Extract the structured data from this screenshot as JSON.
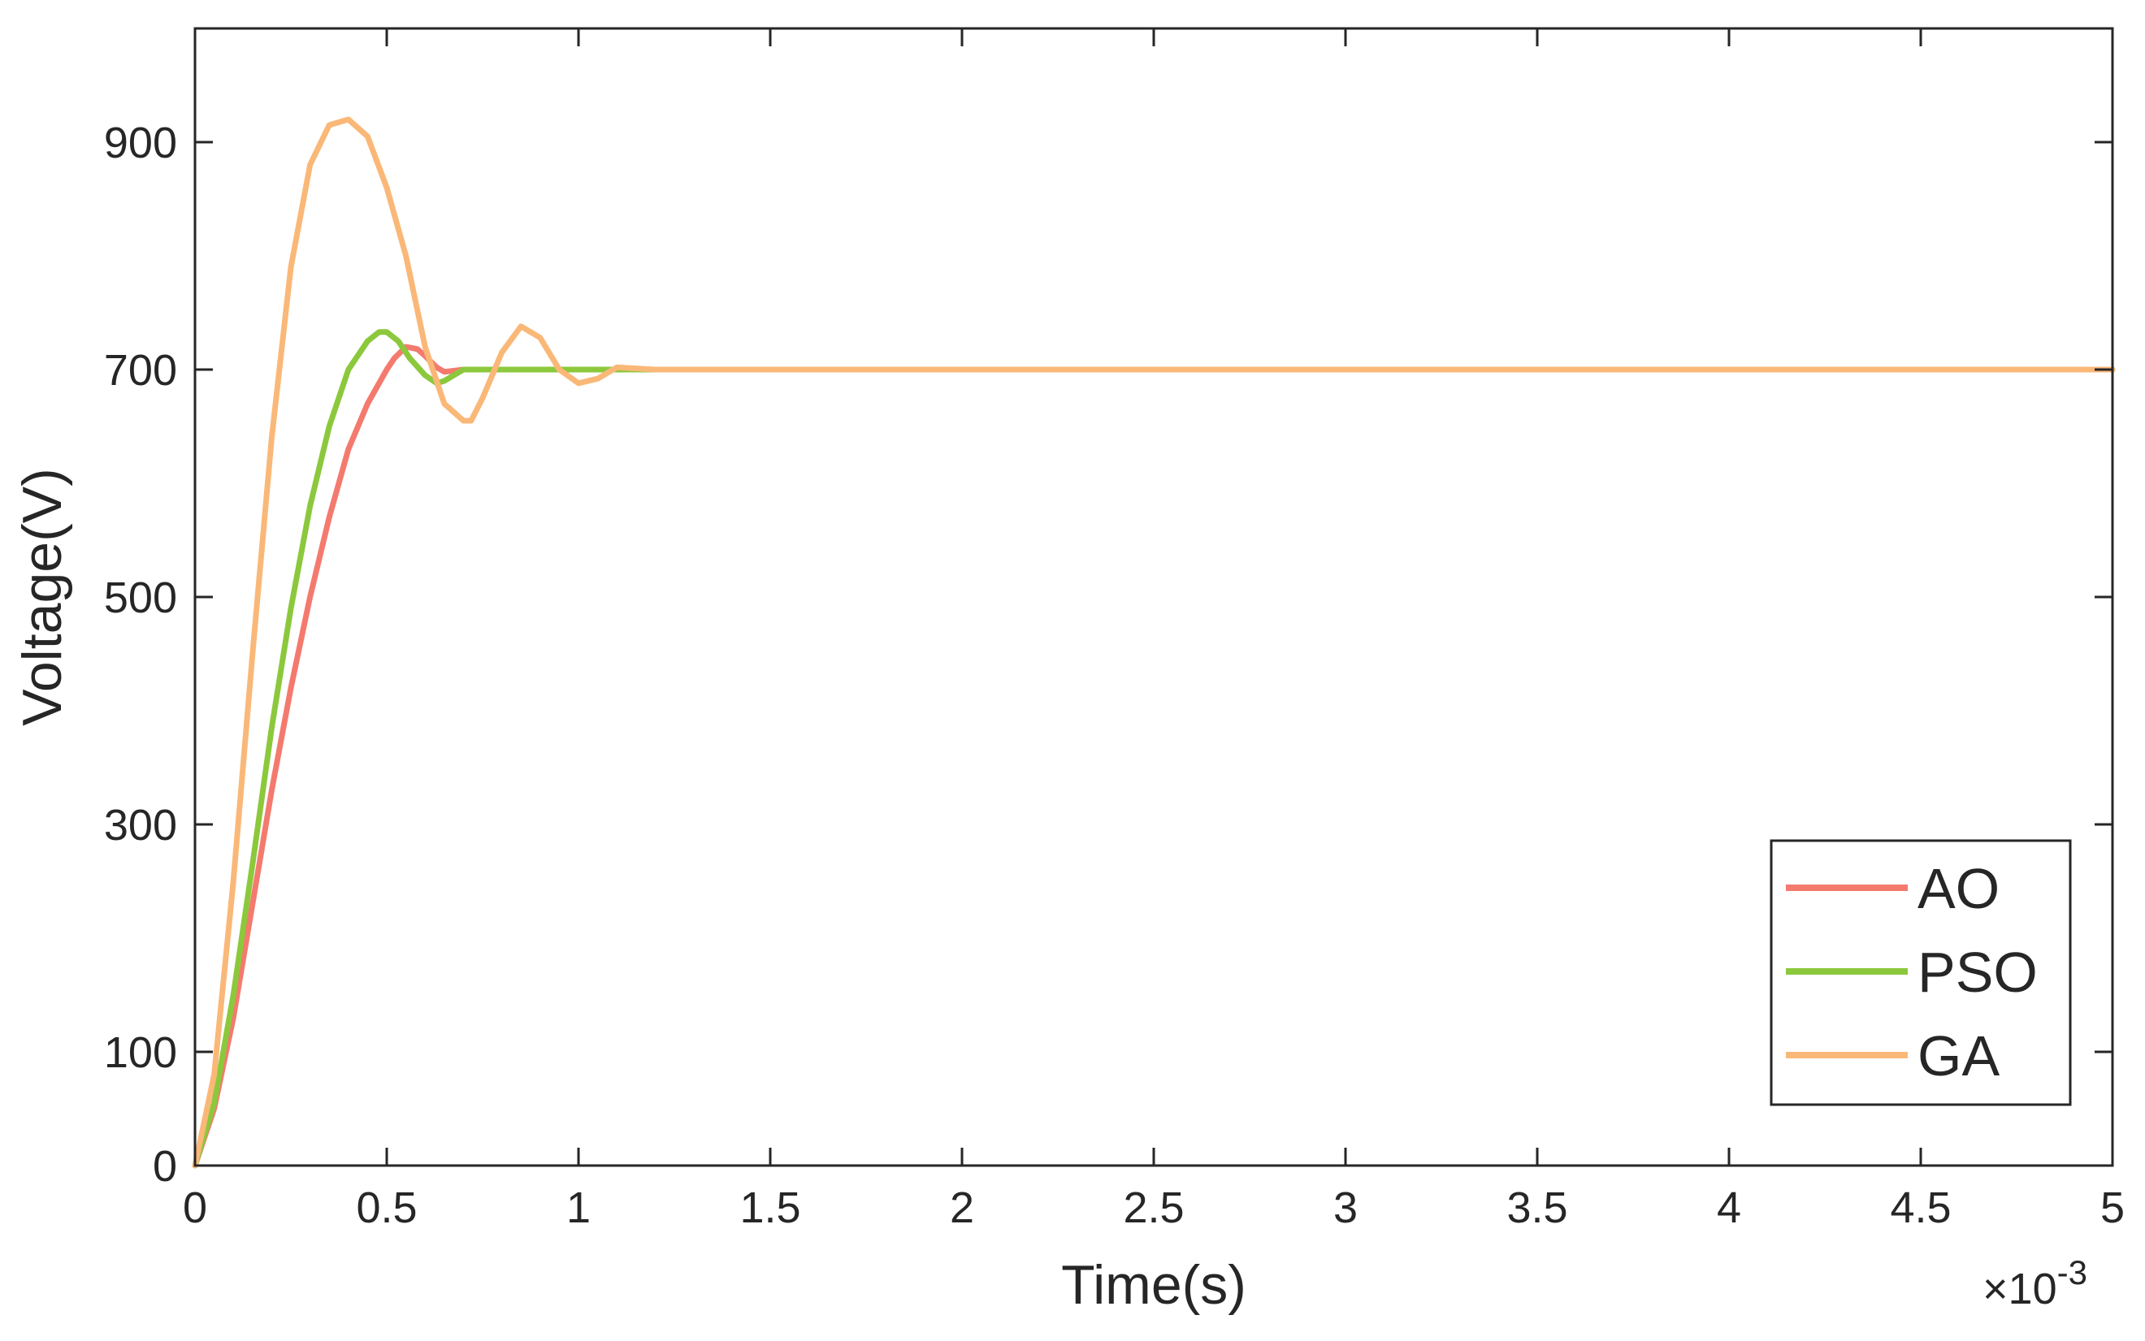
{
  "chart_data": {
    "type": "line",
    "title": "",
    "xlabel": "Time(s)",
    "ylabel": "Voltage(V)",
    "x_exponent_label": "×10",
    "x_exponent_power": "-3",
    "x_scale": 0.001,
    "xlim": [
      0,
      5
    ],
    "ylim": [
      0,
      1000
    ],
    "x_ticks": [
      0,
      0.5,
      1,
      1.5,
      2,
      2.5,
      3,
      3.5,
      4,
      4.5,
      5
    ],
    "x_tick_labels": [
      "0",
      "0.5",
      "1",
      "1.5",
      "2",
      "2.5",
      "3",
      "3.5",
      "4",
      "4.5",
      "5"
    ],
    "y_ticks": [
      0,
      100,
      300,
      500,
      700,
      900
    ],
    "y_tick_labels": [
      "0",
      "100",
      "300",
      "500",
      "700",
      "900"
    ],
    "grid": false,
    "legend_position": "bottom-right",
    "series": [
      {
        "name": "AO",
        "color": "#f47a6e",
        "x": [
          0,
          0.05,
          0.1,
          0.15,
          0.2,
          0.25,
          0.3,
          0.35,
          0.4,
          0.45,
          0.5,
          0.52,
          0.55,
          0.58,
          0.6,
          0.63,
          0.65,
          0.7,
          0.8,
          0.9,
          1.0,
          1.2,
          1.5,
          2.0,
          2.5,
          3.0,
          3.5,
          4.0,
          4.5,
          5.0
        ],
        "y": [
          0,
          50,
          130,
          230,
          330,
          420,
          500,
          570,
          630,
          670,
          700,
          710,
          720,
          718,
          712,
          702,
          698,
          700,
          700,
          700,
          700,
          700,
          700,
          700,
          700,
          700,
          700,
          700,
          700,
          700
        ]
      },
      {
        "name": "PSO",
        "color": "#8cc83c",
        "x": [
          0,
          0.05,
          0.1,
          0.15,
          0.2,
          0.25,
          0.3,
          0.35,
          0.4,
          0.45,
          0.48,
          0.5,
          0.53,
          0.56,
          0.6,
          0.63,
          0.65,
          0.7,
          0.8,
          0.9,
          1.0,
          1.2,
          1.5,
          2.0,
          2.5,
          3.0,
          3.5,
          4.0,
          4.5,
          5.0
        ],
        "y": [
          0,
          55,
          150,
          265,
          385,
          490,
          580,
          650,
          700,
          725,
          733,
          733,
          725,
          710,
          695,
          688,
          690,
          700,
          700,
          700,
          700,
          700,
          700,
          700,
          700,
          700,
          700,
          700,
          700,
          700
        ]
      },
      {
        "name": "GA",
        "color": "#fab878",
        "x": [
          0,
          0.05,
          0.1,
          0.15,
          0.2,
          0.25,
          0.3,
          0.35,
          0.4,
          0.45,
          0.5,
          0.55,
          0.6,
          0.65,
          0.7,
          0.72,
          0.75,
          0.8,
          0.85,
          0.9,
          0.95,
          1.0,
          1.05,
          1.1,
          1.2,
          1.5,
          2.0,
          2.5,
          3.0,
          3.5,
          4.0,
          4.5,
          5.0
        ],
        "y": [
          0,
          80,
          250,
          450,
          640,
          790,
          880,
          915,
          920,
          905,
          860,
          800,
          720,
          670,
          655,
          655,
          675,
          715,
          738,
          728,
          700,
          688,
          692,
          702,
          700,
          700,
          700,
          700,
          700,
          700,
          700,
          700,
          700
        ]
      }
    ]
  }
}
